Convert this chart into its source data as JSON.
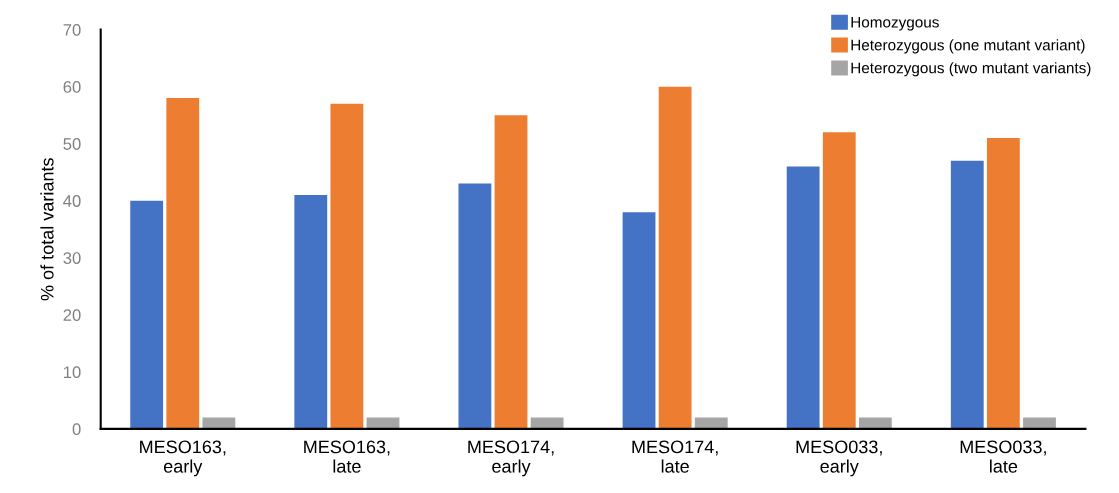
{
  "chart_data": {
    "type": "bar",
    "ylabel": "% of total variants",
    "categories": [
      "MESO163,\nearly",
      "MESO163,\nlate",
      "MESO174,\nearly",
      "MESO174,\nlate",
      "MESO033,\nearly",
      "MESO033,\nlate"
    ],
    "series": [
      {
        "name": "Homozygous",
        "color": "#4472c4",
        "values": [
          40,
          41,
          43,
          38,
          46,
          47
        ]
      },
      {
        "name": "Heterozygous (one mutant variant)",
        "color": "#ed7d31",
        "values": [
          58,
          57,
          55,
          60,
          52,
          51
        ]
      },
      {
        "name": "Heterozygous (two mutant variants)",
        "color": "#a5a5a5",
        "values": [
          2,
          2,
          2,
          2,
          2,
          2
        ]
      }
    ],
    "ylim": [
      0,
      70
    ],
    "yticks": [
      0,
      10,
      20,
      30,
      40,
      50,
      60,
      70
    ],
    "grid": false,
    "legend": "top right"
  }
}
